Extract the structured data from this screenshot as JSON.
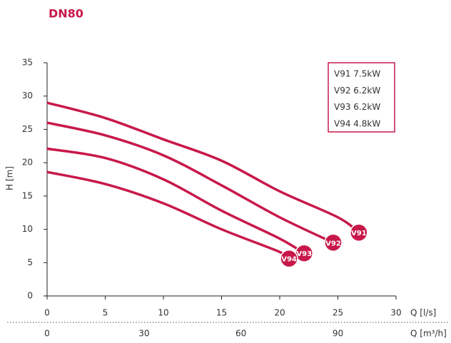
{
  "chart_data": {
    "type": "line",
    "title": "DN80",
    "ylabel": "H [m]",
    "xlabel": "Q [l/s]",
    "x2label": "Q [m³/h]",
    "xlim": [
      0,
      30
    ],
    "xticks": [
      0,
      5,
      10,
      15,
      20,
      25,
      30
    ],
    "x2lim": [
      0,
      108
    ],
    "x2ticks": [
      0,
      30,
      60,
      90
    ],
    "ylim": [
      0,
      35
    ],
    "yticks": [
      0,
      5,
      10,
      15,
      20,
      25,
      30,
      35
    ],
    "color": "#c8184a",
    "legend": "top-right",
    "series": [
      {
        "name": "V91 7.5kW",
        "marker_label": "V91",
        "x": [
          0,
          5,
          10,
          15,
          20,
          25,
          26.8
        ],
        "values": [
          29,
          26.7,
          23.5,
          20.3,
          15.7,
          11.8,
          9.5
        ]
      },
      {
        "name": "V92 6.2kW",
        "marker_label": "V92",
        "x": [
          0,
          5,
          10,
          15,
          20,
          24.6
        ],
        "values": [
          26,
          24.1,
          21.1,
          16.6,
          11.8,
          8.0
        ]
      },
      {
        "name": "V93 6.2kW",
        "marker_label": "V93",
        "x": [
          0,
          5,
          10,
          15,
          20,
          22.1
        ],
        "values": [
          22.1,
          20.7,
          17.5,
          12.8,
          8.6,
          6.4
        ]
      },
      {
        "name": "V94 4.8kW",
        "marker_label": "V94",
        "x": [
          0,
          5,
          10,
          15,
          20,
          20.8
        ],
        "values": [
          18.6,
          16.8,
          13.9,
          10,
          6.6,
          5.6
        ]
      }
    ]
  }
}
